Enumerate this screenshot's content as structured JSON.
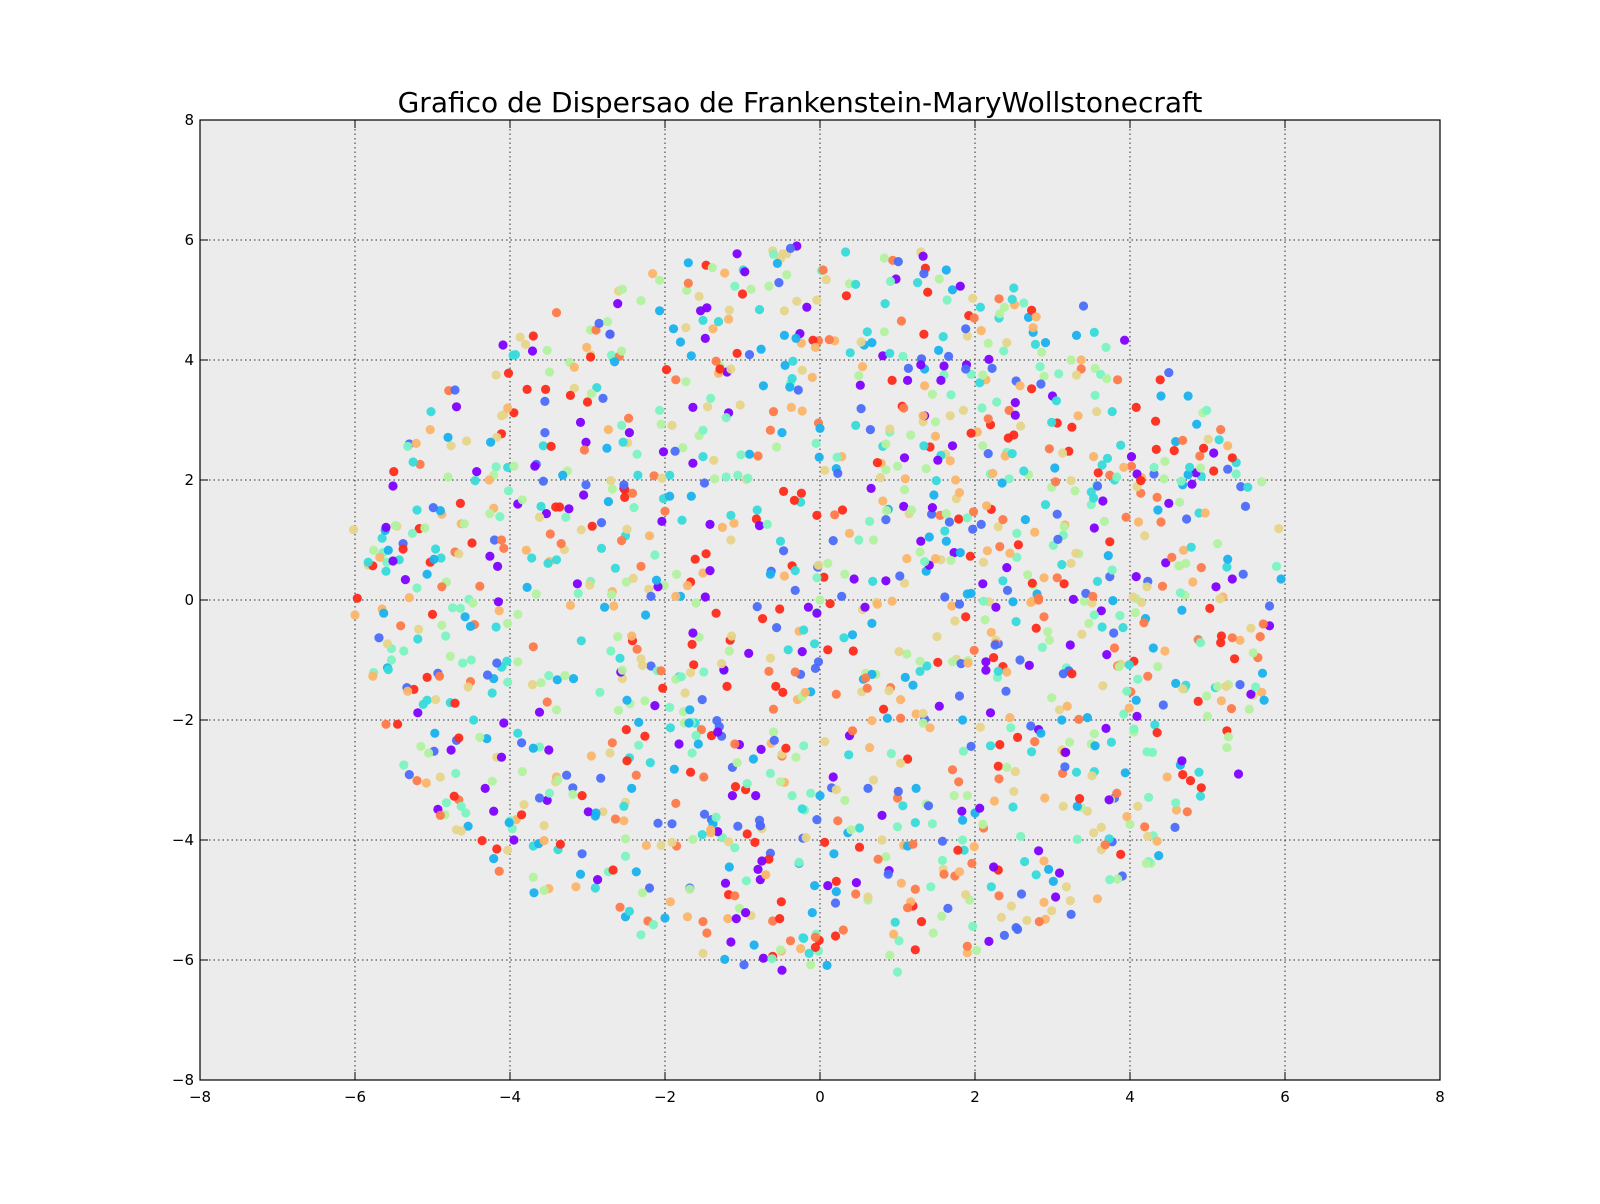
{
  "chart_data": {
    "type": "scatter",
    "title": "Grafico de Dispersao de Frankenstein-MaryWollstonecraft",
    "xlabel": "",
    "ylabel": "",
    "xlim": [
      -8,
      8
    ],
    "ylim": [
      -8,
      8
    ],
    "xticks": [
      -8,
      -6,
      -4,
      -2,
      0,
      2,
      4,
      6,
      8
    ],
    "yticks": [
      -8,
      -6,
      -4,
      -2,
      0,
      2,
      4,
      6,
      8
    ],
    "xtick_labels": [
      "−8",
      "−6",
      "−4",
      "−2",
      "0",
      "2",
      "4",
      "6",
      "8"
    ],
    "ytick_labels": [
      "−8",
      "−6",
      "−4",
      "−2",
      "0",
      "2",
      "4",
      "6",
      "8"
    ],
    "grid": true,
    "legend": "none",
    "background_color": "#ececec",
    "colormap": "rainbow",
    "palette": [
      "#7f00ff",
      "#4a6dfb",
      "#19b2ef",
      "#37dbdb",
      "#7cf4c2",
      "#b3f2a0",
      "#e6d58a",
      "#fbb56a",
      "#ff7a4a",
      "#ff2a1a"
    ],
    "point_count_estimate": 1500,
    "series": [
      {
        "values_note": "cloud of ~1500 points roughly uniformly filling ellipse x∈[-6,6], y∈[-6.2,5.9]",
        "points": [
          [
            -6.02,
            1.17
          ],
          [
            5.92,
            1.19
          ],
          [
            1.0,
            -6.2
          ],
          [
            -0.3,
            5.9
          ],
          [
            -5.3,
            2.6
          ],
          [
            5.7,
            1.97
          ],
          [
            -5.65,
            -0.15
          ],
          [
            5.8,
            -0.1
          ],
          [
            -5.6,
            -2.07
          ],
          [
            5.4,
            -2.9
          ],
          [
            -4.8,
            2.05
          ],
          [
            4.9,
            2.4
          ],
          [
            -2.6,
            5.15
          ],
          [
            2.5,
            5.2
          ],
          [
            -0.5,
            -5.85
          ],
          [
            0.3,
            -5.5
          ],
          [
            0.2,
            -5.6
          ],
          [
            1.3,
            5.8
          ],
          [
            -3.7,
            4.4
          ],
          [
            3.4,
            4.9
          ],
          [
            -3.7,
            -4.1
          ],
          [
            3.9,
            -4.6
          ],
          [
            -4.9,
            -2.95
          ],
          [
            4.6,
            -3.5
          ],
          [
            -5.2,
            0.2
          ],
          [
            5.2,
            0.05
          ],
          [
            -4.2,
            1.0
          ],
          [
            4.3,
            -0.8
          ],
          [
            -3.0,
            3.3
          ],
          [
            3.0,
            3.4
          ],
          [
            -2.0,
            -5.3
          ],
          [
            2.6,
            -4.9
          ],
          [
            -1.0,
            5.1
          ],
          [
            1.2,
            -5.1
          ],
          [
            0.0,
            0.0
          ],
          [
            0.5,
            1.0
          ],
          [
            -1.5,
            -1.2
          ],
          [
            1.8,
            -1.6
          ],
          [
            -0.8,
            2.4
          ],
          [
            2.2,
            2.1
          ],
          [
            -2.5,
            0.3
          ],
          [
            2.8,
            0.1
          ],
          [
            -3.5,
            -2.5
          ],
          [
            3.5,
            -2.4
          ],
          [
            -1.2,
            3.8
          ],
          [
            1.6,
            3.9
          ],
          [
            -0.2,
            -3.5
          ],
          [
            0.8,
            -4.0
          ],
          [
            -4.5,
            -1.0
          ],
          [
            4.4,
            1.3
          ],
          [
            -2.9,
            -3.6
          ],
          [
            2.9,
            -3.3
          ],
          [
            -1.8,
            4.3
          ],
          [
            1.9,
            4.4
          ],
          [
            -0.6,
            -2.2
          ],
          [
            0.9,
            2.8
          ],
          [
            -3.9,
            1.6
          ],
          [
            3.8,
            2.0
          ],
          [
            -2.2,
            -4.8
          ],
          [
            2.3,
            -4.5
          ]
        ]
      }
    ]
  }
}
